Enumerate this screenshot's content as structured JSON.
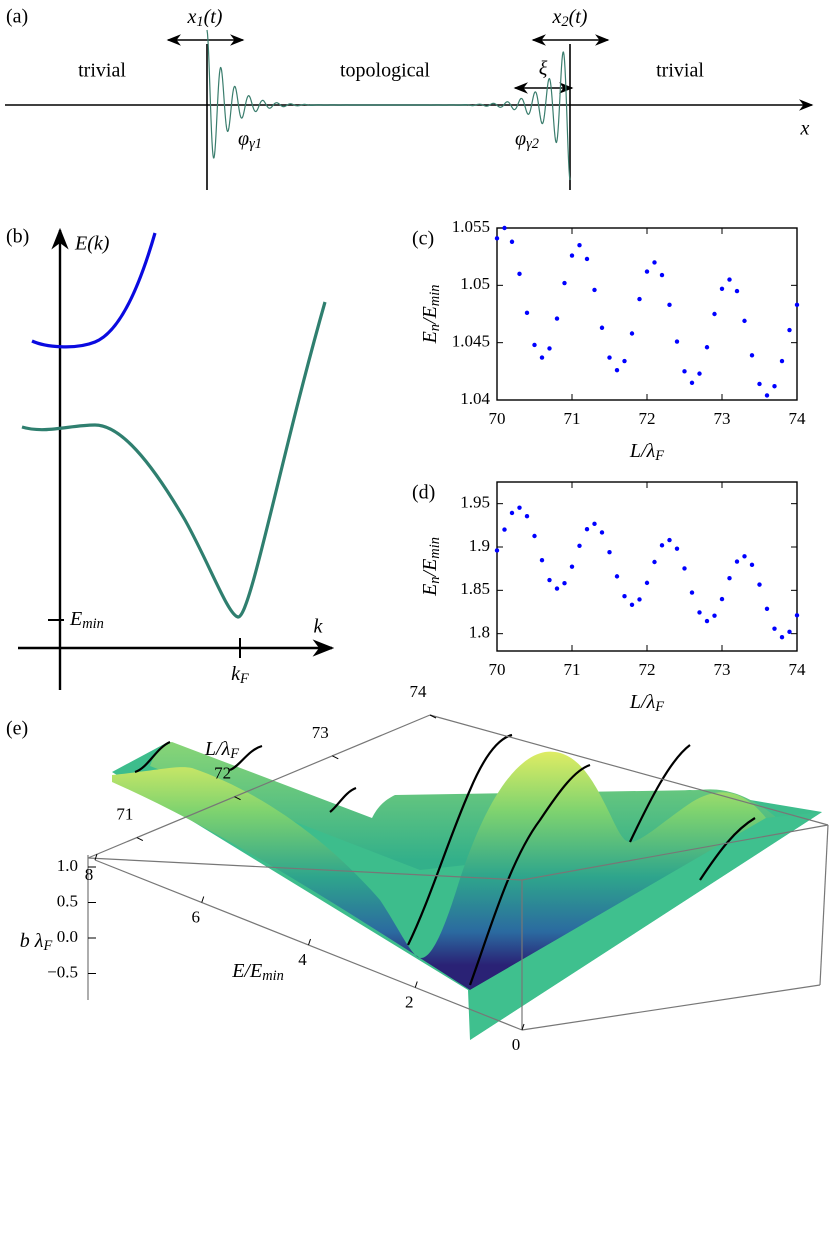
{
  "chart_data": [
    {
      "type": "schematic",
      "panel": "(a)",
      "labels": {
        "x1": "x1(t)",
        "x2": "x2(t)",
        "left": "trivial",
        "middle": "topological",
        "right": "trivial",
        "xi": "ξ",
        "phi1": "φγ1",
        "phi2": "φγ2",
        "axis": "x"
      },
      "color": "#3a7d6d"
    },
    {
      "type": "dispersion",
      "panel": "(b)",
      "ylabel": "E(k)",
      "xlabel": "k",
      "emin_label": "Emin",
      "kf_label": "kF",
      "colors": [
        "#0a0ae0",
        "#2f7f6f"
      ]
    },
    {
      "type": "scatter",
      "panel": "(c)",
      "xlabel": "L/λF",
      "ylabel": "En/Emin",
      "color": "#0000ff",
      "x": [
        70,
        70.1,
        70.2,
        70.3,
        70.4,
        70.5,
        70.6,
        70.7,
        70.8,
        70.9,
        71,
        71.1,
        71.2,
        71.3,
        71.4,
        71.5,
        71.6,
        71.7,
        71.8,
        71.9,
        72,
        72.1,
        72.2,
        72.3,
        72.4,
        72.5,
        72.6,
        72.7,
        72.8,
        72.9,
        73,
        73.1,
        73.2,
        73.3,
        73.4,
        73.5,
        73.6,
        73.7,
        73.8,
        73.9,
        74
      ],
      "values": [
        1.0541,
        1.055,
        1.0538,
        1.051,
        1.0476,
        1.0448,
        1.0437,
        1.0445,
        1.0471,
        1.0502,
        1.0526,
        1.0535,
        1.0523,
        1.0496,
        1.0463,
        1.0437,
        1.0426,
        1.0434,
        1.0458,
        1.0488,
        1.0512,
        1.052,
        1.0509,
        1.0483,
        1.0451,
        1.0425,
        1.0415,
        1.0423,
        1.0446,
        1.0475,
        1.0497,
        1.0505,
        1.0495,
        1.0469,
        1.0439,
        1.0414,
        1.0404,
        1.0412,
        1.0434,
        1.0461,
        1.0483
      ],
      "xlim": [
        70,
        74
      ],
      "ylim": [
        1.04,
        1.055
      ],
      "xticks": [
        70,
        71,
        72,
        73,
        74
      ],
      "yticks": [
        1.04,
        1.045,
        1.05,
        1.055
      ]
    },
    {
      "type": "scatter",
      "panel": "(d)",
      "xlabel": "L/λF",
      "ylabel": "En/Emin",
      "color": "#0000ff",
      "x": [
        70,
        70.1,
        70.2,
        70.3,
        70.4,
        70.5,
        70.6,
        70.7,
        70.8,
        70.9,
        71,
        71.1,
        71.2,
        71.3,
        71.4,
        71.5,
        71.6,
        71.7,
        71.8,
        71.9,
        72,
        72.1,
        72.2,
        72.3,
        72.4,
        72.5,
        72.6,
        72.7,
        72.8,
        72.9,
        73,
        73.1,
        73.2,
        73.3,
        73.4,
        73.5,
        73.6,
        73.7,
        73.8,
        73.9,
        74
      ],
      "values": [
        1.896,
        1.9201,
        1.9393,
        1.9454,
        1.9355,
        1.9127,
        1.8848,
        1.8619,
        1.852,
        1.8582,
        1.8773,
        1.9014,
        1.9206,
        1.9267,
        1.9168,
        1.894,
        1.8661,
        1.8432,
        1.8333,
        1.8395,
        1.8586,
        1.8827,
        1.9019,
        1.908,
        1.8981,
        1.8753,
        1.8474,
        1.8245,
        1.8146,
        1.8208,
        1.8399,
        1.864,
        1.8832,
        1.8893,
        1.8794,
        1.8566,
        1.8287,
        1.8058,
        1.7959,
        1.8021,
        1.8212
      ],
      "xlim": [
        70,
        74
      ],
      "ylim": [
        1.78,
        1.975
      ],
      "xticks": [
        70,
        71,
        72,
        73,
        74
      ],
      "yticks": [
        1.8,
        1.85,
        1.9,
        1.95
      ]
    },
    {
      "type": "surface",
      "panel": "(e)",
      "xlabel": "L/λF",
      "ylabel": "E/Emin",
      "zlabel": "b λF",
      "xlim": [
        70.5,
        74
      ],
      "xticks": [
        71,
        72,
        73,
        74
      ],
      "ylim": [
        0,
        8
      ],
      "yticks": [
        0,
        2,
        4,
        6,
        8
      ],
      "zlim": [
        -0.8,
        1.2
      ],
      "zticks": [
        {
          "value": -0.5,
          "label": "−0.5"
        },
        {
          "value": 0,
          "label": "0.0"
        },
        0.5,
        {
          "value": 1,
          "label": "1.0"
        }
      ]
    }
  ]
}
